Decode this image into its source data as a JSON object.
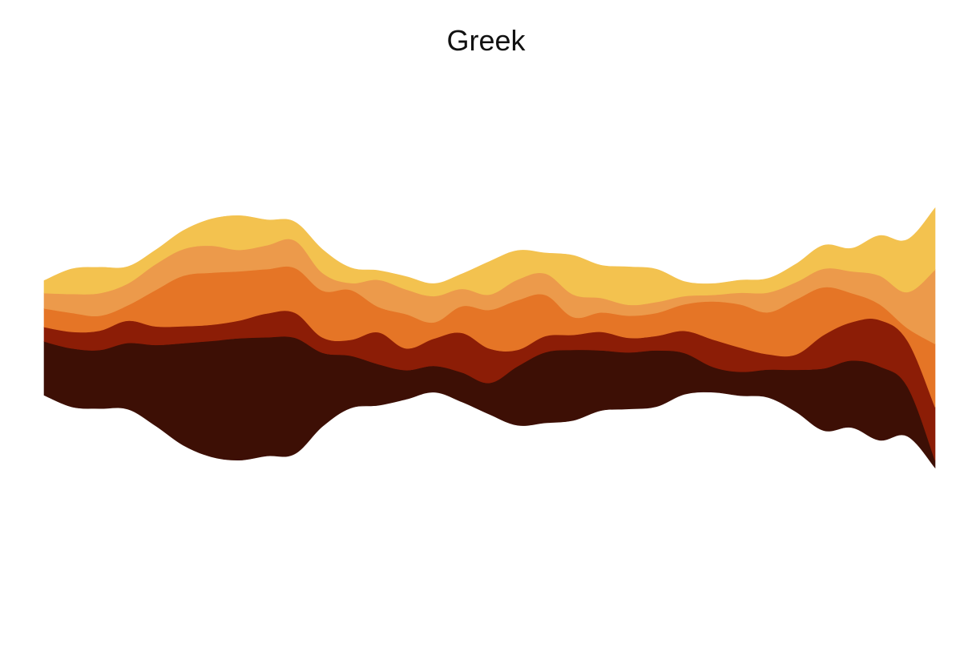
{
  "chart_data": {
    "type": "area",
    "layout": "streamgraph",
    "title": "Greek",
    "xlabel": "",
    "ylabel": "",
    "axes_visible": false,
    "grid": false,
    "legend": "none",
    "x": [
      0,
      0.5,
      1,
      1.5,
      2,
      2.5,
      3,
      3.5,
      4,
      4.5,
      5,
      5.5,
      6,
      6.5,
      7,
      7.5,
      8,
      8.5,
      9,
      9.5,
      10,
      10.5,
      11,
      11.5,
      12,
      12.5,
      13,
      13.5,
      14,
      14.5,
      15,
      15.5,
      16
    ],
    "series": [
      {
        "color": "#3d0f05",
        "values": [
          13.3,
          14.5,
          14.5,
          16.4,
          20,
          25.3,
          28.7,
          30.2,
          29.4,
          28.8,
          18.2,
          13,
          10.2,
          7.2,
          6.5,
          7.3,
          7.8,
          14.6,
          17.5,
          17.5,
          14.9,
          14,
          13.9,
          10.2,
          6.3,
          5.9,
          6.9,
          10.4,
          15.4,
          16.6,
          18.3,
          12.3,
          1.8
        ]
      },
      {
        "color": "#8c1d06",
        "values": [
          3.6,
          4.1,
          4.8,
          5.5,
          4.6,
          4.2,
          4,
          4.4,
          5.9,
          6.2,
          3.8,
          3.9,
          7.9,
          5.4,
          6.8,
          9.8,
          8.5,
          4.1,
          4,
          3.7,
          4.6,
          3.6,
          3.6,
          5.5,
          6.8,
          6,
          3.8,
          3.8,
          8.3,
          9.5,
          11.5,
          11.4,
          13.2
        ]
      },
      {
        "color": "#e57526",
        "values": [
          4.6,
          4.7,
          3.7,
          3.8,
          9,
          12.5,
          12.9,
          12.2,
          11,
          11.1,
          11.6,
          12.4,
          6.3,
          8.5,
          4,
          6.6,
          9.6,
          12.3,
          10.2,
          4.4,
          4.8,
          5.5,
          5.7,
          6.6,
          9.4,
          10.7,
          10.4,
          13.6,
          11.8,
          7.2,
          3.9,
          3.1,
          15.7
        ]
      },
      {
        "color": "#ec9a4b",
        "values": [
          3.8,
          4.7,
          5.6,
          5.4,
          6.4,
          6.6,
          6.7,
          5.3,
          5.9,
          6.8,
          4.4,
          1.7,
          6.7,
          6.1,
          6.5,
          4.3,
          3.8,
          5.1,
          5.3,
          5.6,
          3.6,
          2.7,
          2.7,
          2,
          1.6,
          2.9,
          4.9,
          4.3,
          4.6,
          5.4,
          7.1,
          8.9,
          18.4
        ]
      },
      {
        "color": "#f3c24f",
        "values": [
          3.1,
          6.2,
          6.4,
          4.2,
          3.5,
          4.6,
          6.6,
          8.5,
          6.3,
          4.6,
          5.8,
          3.8,
          2.3,
          3.2,
          3.1,
          3.7,
          8.2,
          7.2,
          5.1,
          9.7,
          8.1,
          9.4,
          8.1,
          3.6,
          2.8,
          3.1,
          3.5,
          4.5,
          5.8,
          5.7,
          9.9,
          13,
          15.3
        ]
      }
    ]
  }
}
